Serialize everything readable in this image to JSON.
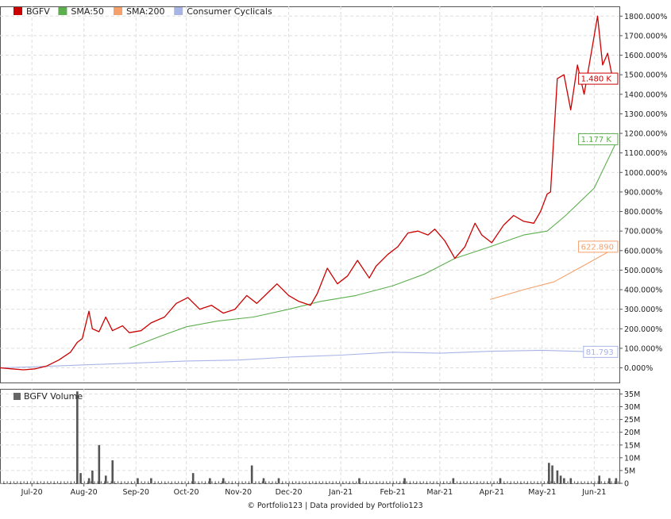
{
  "legend": [
    {
      "label": "BGFV",
      "color": "#cc0000"
    },
    {
      "label": "SMA:50",
      "color": "#5cae4e"
    },
    {
      "label": "SMA:200",
      "color": "#f5a06a"
    },
    {
      "label": "Consumer Cyclicals",
      "color": "#a8b4e6"
    }
  ],
  "volume_legend": {
    "label": "BGFV Volume",
    "color": "#666666"
  },
  "footer": "© Portfolio123 | Data provided by Portfolio123",
  "chart_data": {
    "type": "line",
    "x_tick_labels": [
      "Jul-20",
      "Aug-20",
      "Sep-20",
      "Oct-20",
      "Nov-20",
      "Dec-20",
      "Jan-21",
      "Feb-21",
      "Mar-21",
      "Apr-21",
      "May-21",
      "Jun-21"
    ],
    "x_tick_dates": [
      "2020-07-01",
      "2020-08-01",
      "2020-09-01",
      "2020-10-01",
      "2020-11-01",
      "2020-12-01",
      "2021-01-01",
      "2021-02-01",
      "2021-03-01",
      "2021-04-01",
      "2021-05-01",
      "2021-06-01"
    ],
    "x_range": [
      "2020-06-12",
      "2021-06-16"
    ],
    "price_panel": {
      "y_unit": "%",
      "ylim": [
        -75,
        1850
      ],
      "y_ticks": [
        0,
        100,
        200,
        300,
        400,
        500,
        600,
        700,
        800,
        900,
        1000,
        1100,
        1200,
        1300,
        1400,
        1500,
        1600,
        1700,
        1800
      ],
      "y_tick_labels": [
        "0.000%",
        "100.000%",
        "200.000%",
        "300.000%",
        "400.000%",
        "500.000%",
        "600.000%",
        "700.000%",
        "800.000%",
        "900.000%",
        "1000.000%",
        "1100.000%",
        "1200.000%",
        "1300.000%",
        "1400.000%",
        "1500.000%",
        "1600.000%",
        "1700.000%",
        "1800.000%"
      ],
      "grid": true,
      "series": [
        {
          "name": "BGFV",
          "color": "#cc0000",
          "end_label": "1.480 K",
          "x": [
            "2020-06-12",
            "2020-06-19",
            "2020-06-26",
            "2020-07-03",
            "2020-07-10",
            "2020-07-17",
            "2020-07-24",
            "2020-07-28",
            "2020-07-31",
            "2020-08-04",
            "2020-08-06",
            "2020-08-10",
            "2020-08-14",
            "2020-08-18",
            "2020-08-24",
            "2020-08-28",
            "2020-09-04",
            "2020-09-10",
            "2020-09-18",
            "2020-09-25",
            "2020-10-02",
            "2020-10-09",
            "2020-10-16",
            "2020-10-23",
            "2020-10-30",
            "2020-11-06",
            "2020-11-12",
            "2020-11-18",
            "2020-11-24",
            "2020-12-01",
            "2020-12-07",
            "2020-12-14",
            "2020-12-18",
            "2020-12-24",
            "2020-12-30",
            "2021-01-05",
            "2021-01-11",
            "2021-01-18",
            "2021-01-22",
            "2021-01-29",
            "2021-02-04",
            "2021-02-10",
            "2021-02-16",
            "2021-02-22",
            "2021-02-26",
            "2021-03-04",
            "2021-03-10",
            "2021-03-16",
            "2021-03-22",
            "2021-03-26",
            "2021-04-01",
            "2021-04-08",
            "2021-04-14",
            "2021-04-20",
            "2021-04-26",
            "2021-04-30",
            "2021-05-04",
            "2021-05-06",
            "2021-05-10",
            "2021-05-14",
            "2021-05-18",
            "2021-05-22",
            "2021-05-26",
            "2021-05-31",
            "2021-06-03",
            "2021-06-06",
            "2021-06-09",
            "2021-06-12",
            "2021-06-15"
          ],
          "y": [
            0,
            -5,
            -10,
            -5,
            10,
            40,
            80,
            130,
            150,
            290,
            200,
            185,
            260,
            190,
            215,
            180,
            190,
            230,
            260,
            330,
            360,
            300,
            320,
            280,
            300,
            370,
            330,
            380,
            430,
            370,
            340,
            320,
            380,
            510,
            430,
            470,
            550,
            460,
            520,
            580,
            620,
            690,
            700,
            680,
            710,
            650,
            560,
            620,
            740,
            680,
            640,
            730,
            780,
            750,
            740,
            800,
            890,
            900,
            1480,
            1500,
            1320,
            1550,
            1400,
            1650,
            1800,
            1550,
            1610,
            1480,
            1480
          ]
        },
        {
          "name": "SMA:50",
          "color": "#5cae4e",
          "end_label": "1.177 K",
          "x": [
            "2020-08-28",
            "2020-09-15",
            "2020-10-01",
            "2020-10-20",
            "2020-11-10",
            "2020-12-01",
            "2020-12-20",
            "2021-01-10",
            "2021-02-01",
            "2021-02-20",
            "2021-03-10",
            "2021-03-31",
            "2021-04-20",
            "2021-05-04",
            "2021-05-15",
            "2021-06-01",
            "2021-06-15"
          ],
          "y": [
            100,
            160,
            210,
            240,
            260,
            300,
            340,
            370,
            420,
            480,
            560,
            620,
            680,
            700,
            780,
            920,
            1170
          ]
        },
        {
          "name": "SMA:200",
          "color": "#f5a06a",
          "end_label": "622.890",
          "x": [
            "2021-03-31",
            "2021-04-20",
            "2021-05-08",
            "2021-05-25",
            "2021-06-15"
          ],
          "y": [
            350,
            400,
            440,
            520,
            620
          ]
        },
        {
          "name": "Consumer Cyclicals",
          "color": "#a8b4e6",
          "end_label": "81.793",
          "x": [
            "2020-06-12",
            "2020-07-01",
            "2020-08-01",
            "2020-09-01",
            "2020-10-01",
            "2020-11-01",
            "2020-12-01",
            "2021-01-01",
            "2021-02-01",
            "2021-03-01",
            "2021-04-01",
            "2021-05-01",
            "2021-06-01",
            "2021-06-15"
          ],
          "y": [
            0,
            5,
            15,
            25,
            35,
            40,
            55,
            65,
            80,
            75,
            85,
            90,
            82,
            82
          ]
        }
      ]
    },
    "volume_panel": {
      "name": "BGFV Volume",
      "ylim": [
        0,
        37
      ],
      "y_ticks": [
        0,
        5,
        10,
        15,
        20,
        25,
        30,
        35
      ],
      "y_tick_labels": [
        "0",
        "5M",
        "10M",
        "15M",
        "20M",
        "25M",
        "30M",
        "35M"
      ],
      "bars": {
        "x": [
          "2020-07-28",
          "2020-07-30",
          "2020-08-04",
          "2020-08-06",
          "2020-08-10",
          "2020-08-14",
          "2020-08-18",
          "2020-09-02",
          "2020-09-10",
          "2020-10-05",
          "2020-10-15",
          "2020-10-23",
          "2020-11-09",
          "2020-11-16",
          "2020-11-25",
          "2021-01-12",
          "2021-02-08",
          "2021-03-09",
          "2021-04-06",
          "2021-05-05",
          "2021-05-07",
          "2021-05-10",
          "2021-05-12",
          "2021-05-14",
          "2021-05-18",
          "2021-06-04",
          "2021-06-10",
          "2021-06-14"
        ],
        "values": [
          36,
          4,
          2,
          5,
          15,
          3,
          9,
          2,
          2,
          4,
          2,
          2,
          7,
          2,
          2,
          2,
          2,
          2,
          2,
          8,
          7,
          5,
          3,
          2,
          2,
          3,
          2,
          2
        ]
      }
    }
  }
}
